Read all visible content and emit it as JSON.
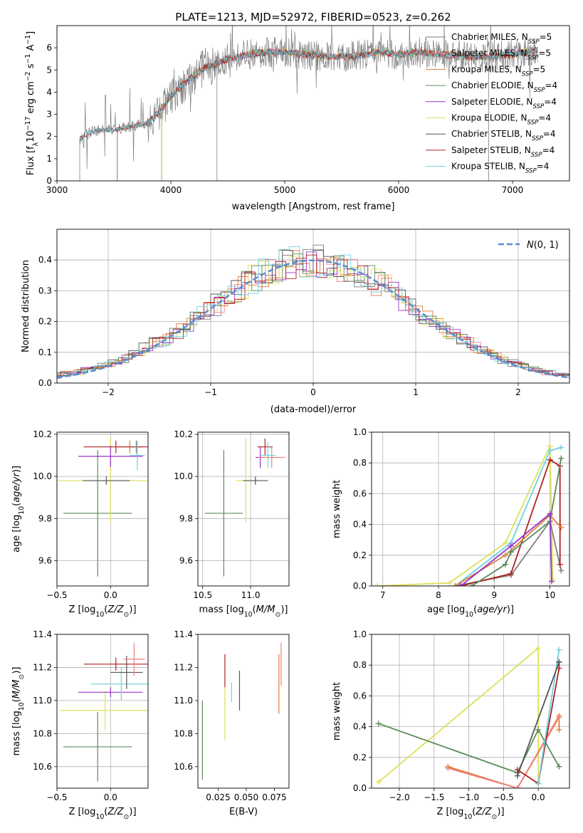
{
  "figure_title": "PLATE=1213, MJD=52972, FIBERID=0523, z=0.262",
  "colors": {
    "Chabrier MILES": "#7f7f7f",
    "Salpeter MILES": "#f08080",
    "Kroupa MILES": "#e07b39",
    "Chabrier ELODIE": "#5b8c5a",
    "Salpeter ELODIE": "#9932cc",
    "Kroupa ELODIE": "#dde05a",
    "Chabrier STELIB": "#555555",
    "Salpeter STELIB": "#b22222",
    "Kroupa STELIB": "#70d0e0",
    "normal": "#5b8bd6"
  },
  "chart_data": [
    {
      "type": "line",
      "title": "PLATE=1213, MJD=52972, FIBERID=0523, z=0.262",
      "xlabel": "wavelength [Angstrom, rest frame]",
      "ylabel": "Flux [fλ 10⁻¹⁷ erg cm⁻² s⁻¹ A⁻¹]",
      "xlim": [
        3000,
        7500
      ],
      "ylim": [
        0,
        7
      ],
      "xticks": [
        "3000",
        "4000",
        "5000",
        "6000",
        "7000"
      ],
      "yticks": [
        "0",
        "1",
        "2",
        "3",
        "4",
        "5",
        "6"
      ],
      "legend": "right",
      "legend_entries": [
        "Chabrier MILES, N_SSP=5",
        "Salpeter MILES, N_SSP=5",
        "Kroupa MILES, N_SSP=5",
        "Chabrier ELODIE, N_SSP=4",
        "Salpeter ELODIE, N_SSP=4",
        "Kroupa ELODIE, N_SSP=4",
        "Chabrier STELIB, N_SSP=4",
        "Salpeter STELIB, N_SSP=4",
        "Kroupa STELIB, N_SSP=4"
      ],
      "series_shape": {
        "x": [
          3200,
          3300,
          3400,
          3500,
          3600,
          3700,
          3800,
          3900,
          4000,
          4100,
          4200,
          4300,
          4400,
          4500,
          4600,
          4700,
          4800,
          4900,
          5000,
          5200,
          5400,
          5600,
          5800,
          6000,
          6200,
          6400,
          6600,
          6800,
          7000,
          7200
        ],
        "y": [
          1.9,
          2.2,
          2.3,
          2.3,
          2.4,
          2.5,
          2.6,
          3.1,
          3.8,
          4.3,
          4.7,
          5.1,
          5.3,
          5.5,
          5.6,
          5.7,
          5.8,
          5.8,
          5.8,
          5.7,
          5.6,
          5.6,
          5.8,
          5.7,
          5.8,
          5.7,
          5.6,
          5.6,
          5.7,
          5.9
        ]
      }
    },
    {
      "type": "line",
      "xlabel": "(data-model)/error",
      "ylabel": "Normed distribution",
      "xlim": [
        -2.5,
        2.5
      ],
      "ylim": [
        0,
        0.5
      ],
      "xticks": [
        "−2",
        "−1",
        "0",
        "1",
        "2"
      ],
      "yticks": [
        "0.0",
        "0.1",
        "0.2",
        "0.3",
        "0.4"
      ],
      "grid": true,
      "legend": "top-right",
      "legend_entries": [
        "N(0,1)"
      ],
      "histogram_bin_width": 0.1
    },
    {
      "type": "scatter",
      "xlabel": "Z [log10(Z/Z⊙)]",
      "ylabel": "age  [log10(age/yr)]",
      "xlim": [
        -0.5,
        0.35
      ],
      "ylim": [
        9.48,
        10.21
      ],
      "xticks": [
        "−0.5",
        "0.0"
      ],
      "yticks": [
        "9.6",
        "9.8",
        "10.0",
        "10.2"
      ],
      "grid": true,
      "points": [
        {
          "x": -0.12,
          "y": 9.825,
          "xerr": 0.32,
          "yerr": 0.3,
          "series": "Chabrier ELODIE"
        },
        {
          "x": 0.0,
          "y": 9.98,
          "xerr": 0.5,
          "yerr": 0.2,
          "series": "Kroupa ELODIE"
        },
        {
          "x": 0.0,
          "y": 10.095,
          "xerr": 0.3,
          "yerr": 0.05,
          "series": "Salpeter ELODIE"
        },
        {
          "x": -0.04,
          "y": 9.98,
          "xerr": 0.22,
          "yerr": 0.02,
          "series": "Chabrier STELIB"
        },
        {
          "x": 0.18,
          "y": 10.14,
          "xerr": 0.12,
          "yerr": 0.03,
          "series": "Kroupa MILES"
        },
        {
          "x": 0.05,
          "y": 10.14,
          "xerr": 0.3,
          "yerr": 0.03,
          "series": "Salpeter STELIB"
        },
        {
          "x": 0.25,
          "y": 10.1,
          "xerr": 0.07,
          "yerr": 0.07,
          "series": "Kroupa STELIB"
        },
        {
          "x": 0.24,
          "y": 10.14,
          "xerr": 0.02,
          "yerr": 0.03,
          "series": "Chabrier MILES"
        }
      ]
    },
    {
      "type": "scatter",
      "xlabel": "mass [log10(M/M⊙)]",
      "xlim": [
        10.45,
        11.4
      ],
      "ylim": [
        9.48,
        10.21
      ],
      "xticks": [
        "10.5",
        "11.0"
      ],
      "yticks": [
        "9.6",
        "9.8",
        "10.0",
        "10.2"
      ],
      "grid": true,
      "points": [
        {
          "x": 10.72,
          "y": 9.825,
          "xerr": 0.2,
          "yerr": 0.3,
          "series": "Chabrier ELODIE"
        },
        {
          "x": 10.95,
          "y": 9.98,
          "xerr": 0.1,
          "yerr": 0.2,
          "series": "Kroupa ELODIE"
        },
        {
          "x": 11.05,
          "y": 9.98,
          "xerr": 0.13,
          "yerr": 0.02,
          "series": "Chabrier STELIB"
        },
        {
          "x": 11.1,
          "y": 10.09,
          "xerr": 0.05,
          "yerr": 0.05,
          "series": "Salpeter ELODIE"
        },
        {
          "x": 11.15,
          "y": 10.14,
          "xerr": 0.08,
          "yerr": 0.04,
          "series": "Salpeter STELIB"
        },
        {
          "x": 11.18,
          "y": 10.1,
          "xerr": 0.08,
          "yerr": 0.06,
          "series": "Kroupa STELIB"
        },
        {
          "x": 11.22,
          "y": 10.09,
          "xerr": 0.14,
          "yerr": 0.05,
          "series": "Salpeter MILES"
        }
      ]
    },
    {
      "type": "line",
      "xlabel": "age  [log10(age/yr)]",
      "ylabel": "mass weight",
      "xlim": [
        6.8,
        10.35
      ],
      "ylim": [
        0,
        1
      ],
      "xticks": [
        "7",
        "8",
        "9",
        "10"
      ],
      "yticks": [
        "0.0",
        "0.2",
        "0.4",
        "0.6",
        "0.8",
        "1.0"
      ],
      "grid": true,
      "series": [
        {
          "name": "Kroupa ELODIE",
          "x": [
            6.9,
            8.2,
            9.2,
            10.0,
            10.05
          ],
          "y": [
            0.0,
            0.02,
            0.28,
            0.91,
            0.04
          ]
        },
        {
          "name": "Kroupa STELIB",
          "x": [
            8.3,
            9.3,
            10.0,
            10.2
          ],
          "y": [
            0.0,
            0.28,
            0.88,
            0.9
          ]
        },
        {
          "name": "Chabrier MILES",
          "x": [
            8.3,
            9.0,
            9.3,
            10.0,
            10.2
          ],
          "y": [
            0.0,
            0.05,
            0.07,
            0.42,
            0.1
          ]
        },
        {
          "name": "Salpeter STELIB",
          "x": [
            8.4,
            9.3,
            10.0,
            10.18,
            10.18
          ],
          "y": [
            0.0,
            0.08,
            0.82,
            0.78,
            0.14
          ]
        },
        {
          "name": "Kroupa MILES",
          "x": [
            8.3,
            9.2,
            10.0,
            10.2
          ],
          "y": [
            0.0,
            0.2,
            0.46,
            0.38
          ]
        },
        {
          "name": "Chabrier ELODIE",
          "x": [
            8.6,
            9.2,
            9.3,
            10.0,
            10.2
          ],
          "y": [
            0.0,
            0.14,
            0.22,
            0.42,
            0.83
          ]
        },
        {
          "name": "Salpeter ELODIE",
          "x": [
            8.4,
            9.3,
            10.0,
            10.03
          ],
          "y": [
            0.0,
            0.26,
            0.47,
            0.03
          ]
        }
      ]
    },
    {
      "type": "scatter",
      "xlabel": "Z [log10(Z/Z⊙)]",
      "ylabel": "mass [log10(M/M⊙)]",
      "xlim": [
        -0.5,
        0.35
      ],
      "ylim": [
        10.47,
        11.4
      ],
      "xticks": [
        "−0.5",
        "0.0"
      ],
      "yticks": [
        "10.6",
        "10.8",
        "11.0",
        "11.2",
        "11.4"
      ],
      "grid": true,
      "points": [
        {
          "x": -0.12,
          "y": 10.72,
          "xerr": 0.32,
          "yerr": 0.21,
          "series": "Chabrier ELODIE"
        },
        {
          "x": -0.05,
          "y": 10.94,
          "xerr": 0.42,
          "yerr": 0.12,
          "series": "Kroupa ELODIE"
        },
        {
          "x": 0.0,
          "y": 11.05,
          "xerr": 0.3,
          "yerr": 0.03,
          "series": "Salpeter ELODIE"
        },
        {
          "x": 0.05,
          "y": 11.22,
          "xerr": 0.3,
          "yerr": 0.04,
          "series": "Salpeter STELIB"
        },
        {
          "x": 0.1,
          "y": 11.1,
          "xerr": 0.28,
          "yerr": 0.1,
          "series": "Kroupa STELIB"
        },
        {
          "x": 0.15,
          "y": 11.17,
          "xerr": 0.15,
          "yerr": 0.1,
          "series": "Chabrier STELIB"
        },
        {
          "x": 0.22,
          "y": 11.25,
          "xerr": 0.1,
          "yerr": 0.1,
          "series": "Salpeter MILES"
        }
      ]
    },
    {
      "type": "scatter",
      "xlabel": "E(B-V)",
      "xlim": [
        0.007,
        0.088
      ],
      "ylim": [
        10.47,
        11.4
      ],
      "xticks": [
        "0.025",
        "0.050",
        "0.075"
      ],
      "yticks": [
        "10.6",
        "10.8",
        "11.0",
        "11.2",
        "11.4"
      ],
      "grid": false,
      "points": [
        {
          "x": 0.011,
          "y": 10.76,
          "yerr": 0.24,
          "series": "Chabrier ELODIE"
        },
        {
          "x": 0.031,
          "y": 10.92,
          "yerr": 0.16,
          "series": "Kroupa ELODIE"
        },
        {
          "x": 0.031,
          "y": 11.18,
          "yerr": 0.1,
          "series": "Salpeter STELIB"
        },
        {
          "x": 0.037,
          "y": 11.05,
          "yerr": 0.06,
          "series": "Kroupa STELIB"
        },
        {
          "x": 0.044,
          "y": 11.06,
          "yerr": 0.12,
          "series": "Chabrier STELIB"
        },
        {
          "x": 0.079,
          "y": 11.1,
          "yerr": 0.18,
          "series": "Kroupa MILES"
        },
        {
          "x": 0.081,
          "y": 11.22,
          "yerr": 0.13,
          "series": "Salpeter MILES"
        }
      ]
    },
    {
      "type": "line",
      "xlabel": "Z [log10(Z/Z⊙)]",
      "ylabel": "mass weight",
      "xlim": [
        -2.4,
        0.45
      ],
      "ylim": [
        0,
        1
      ],
      "xticks": [
        "−2.0",
        "−1.5",
        "−1.0",
        "−0.5",
        "0.0"
      ],
      "yticks": [
        "0.0",
        "0.2",
        "0.4",
        "0.6",
        "0.8",
        "1.0"
      ],
      "grid": true,
      "series": [
        {
          "name": "Kroupa ELODIE",
          "x": [
            -2.3,
            0.0,
            0.0
          ],
          "y": [
            0.04,
            0.91,
            0.04
          ]
        },
        {
          "name": "Chabrier ELODIE",
          "x": [
            -2.3,
            -0.3,
            0.0,
            0.3
          ],
          "y": [
            0.42,
            0.1,
            0.38,
            0.14
          ]
        },
        {
          "name": "Kroupa MILES",
          "x": [
            -1.3,
            -0.3,
            0.3,
            0.3
          ],
          "y": [
            0.14,
            0.0,
            0.47,
            0.38
          ]
        },
        {
          "name": "Salpeter MILES",
          "x": [
            -1.3,
            -0.3,
            0.3
          ],
          "y": [
            0.13,
            0.0,
            0.46
          ]
        },
        {
          "name": "Salpeter STELIB",
          "x": [
            -0.3,
            0.0,
            0.3,
            0.3
          ],
          "y": [
            0.12,
            0.03,
            0.78,
            0.82
          ]
        },
        {
          "name": "Kroupa STELIB",
          "x": [
            0.0,
            0.3
          ],
          "y": [
            0.03,
            0.9
          ]
        },
        {
          "name": "Chabrier STELIB",
          "x": [
            -0.3,
            0.3
          ],
          "y": [
            0.08,
            0.82
          ]
        }
      ]
    }
  ]
}
